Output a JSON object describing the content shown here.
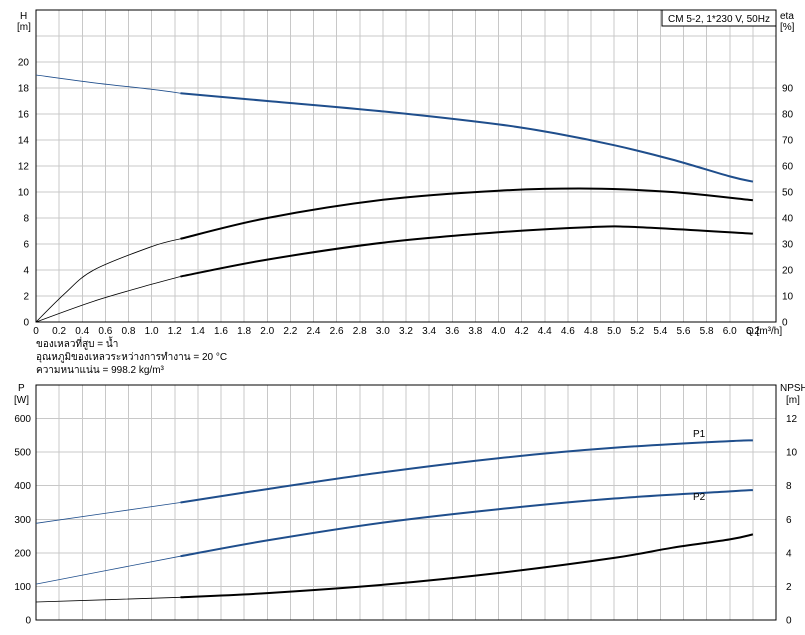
{
  "colors": {
    "blue": "#1f4e8c",
    "black": "#000000",
    "grid": "#c8c8c8",
    "background": "#ffffff"
  },
  "chart_data": [
    {
      "type": "line",
      "legend": "CM 5-2, 1*230 V, 50Hz",
      "x_tick_labels": [
        "0",
        "0.2",
        "0.4",
        "0.6",
        "0.8",
        "1.0",
        "1.2",
        "1.4",
        "1.6",
        "1.8",
        "2.0",
        "2.2",
        "2.4",
        "2.6",
        "2.8",
        "3.0",
        "3.2",
        "3.4",
        "3.6",
        "3.8",
        "4.0",
        "4.2",
        "4.4",
        "4.6",
        "4.8",
        "5.0",
        "5.2",
        "5.4",
        "5.6",
        "5.8",
        "6.0",
        "6.2"
      ],
      "xlabel": "Q [m³/h]",
      "xlim": [
        0,
        6.4
      ],
      "ylabel_left": [
        "H",
        "[m]"
      ],
      "ylim_left": [
        0,
        24
      ],
      "y_ticks_left": [
        "0",
        "2",
        "4",
        "6",
        "8",
        "10",
        "12",
        "14",
        "16",
        "18",
        "20"
      ],
      "ylabel_right": [
        "eta",
        "[%]"
      ],
      "ylim_right": [
        0,
        120
      ],
      "y_ticks_right": [
        "0",
        "10",
        "20",
        "30",
        "40",
        "50",
        "60",
        "70",
        "80",
        "90"
      ],
      "grid": true,
      "notes": [
        "ของเหลวที่สูบ = น้ำ",
        "อุณหภูมิของเหลวระหว่างการทำงาน = 20 °C",
        "ความหนาแน่น = 998.2 kg/m³"
      ],
      "series": [
        {
          "axis": "left",
          "color": "blue",
          "x": [
            0,
            0.5,
            1.0,
            1.25,
            2.0,
            3.0,
            4.0,
            4.5,
            5.0,
            5.5,
            6.0,
            6.2
          ],
          "y": [
            19.0,
            18.4,
            17.9,
            17.6,
            17.0,
            16.2,
            15.2,
            14.5,
            13.6,
            12.5,
            11.2,
            10.8
          ]
        },
        {
          "axis": "right",
          "color": "black",
          "x": [
            0,
            0.25,
            0.5,
            1.0,
            1.25,
            2.0,
            3.0,
            4.0,
            4.8,
            5.5,
            6.2
          ],
          "y": [
            0,
            11,
            20,
            29,
            32,
            40,
            47,
            50.5,
            51.3,
            50,
            46.8
          ]
        },
        {
          "axis": "left",
          "color": "black",
          "x": [
            0,
            0.5,
            1.0,
            1.25,
            2.0,
            3.0,
            4.0,
            4.8,
            5.2,
            6.2
          ],
          "y": [
            0,
            1.6,
            2.9,
            3.5,
            4.8,
            6.1,
            6.9,
            7.3,
            7.3,
            6.8
          ]
        }
      ]
    },
    {
      "type": "line",
      "ylabel_left": [
        "P",
        "[W]"
      ],
      "ylim_left": [
        0,
        700
      ],
      "y_ticks_left": [
        "0",
        "100",
        "200",
        "300",
        "400",
        "500",
        "600"
      ],
      "ylabel_right": [
        "NPSH",
        "[m]"
      ],
      "ylim_right": [
        0,
        14
      ],
      "y_ticks_right": [
        "0",
        "2",
        "4",
        "6",
        "8",
        "10",
        "12"
      ],
      "xlim": [
        0,
        6.4
      ],
      "grid": true,
      "series": [
        {
          "name": "P1",
          "axis": "left",
          "color": "blue",
          "x": [
            0,
            1.25,
            2.0,
            3.0,
            4.0,
            5.0,
            6.0,
            6.2
          ],
          "y": [
            288,
            350,
            390,
            440,
            482,
            513,
            533,
            535
          ]
        },
        {
          "name": "P2",
          "axis": "left",
          "color": "blue",
          "x": [
            0,
            1.25,
            2.0,
            3.0,
            4.0,
            5.0,
            6.0,
            6.2
          ],
          "y": [
            107,
            190,
            237,
            290,
            330,
            362,
            383,
            387
          ]
        },
        {
          "axis": "right",
          "color": "black",
          "x": [
            0,
            1.25,
            2.0,
            3.0,
            4.0,
            5.0,
            5.5,
            6.0,
            6.2
          ],
          "y": [
            1.07,
            1.35,
            1.6,
            2.1,
            2.8,
            3.7,
            4.3,
            4.8,
            5.1
          ]
        }
      ]
    }
  ]
}
